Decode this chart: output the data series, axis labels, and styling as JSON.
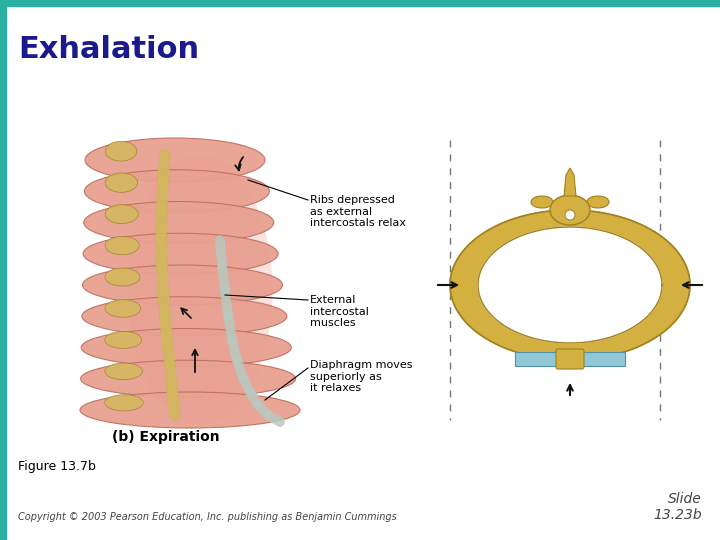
{
  "title": "Exhalation",
  "title_color": "#1a1a8c",
  "title_fontsize": 22,
  "title_bold": true,
  "top_bar_color": "#2ab0a0",
  "left_bar_color": "#2ab0a0",
  "figure_caption": "Figure 13.7b",
  "caption_fontsize": 9,
  "caption_color": "#000000",
  "copyright_text": "Copyright © 2003 Pearson Education, Inc. publishing as Benjamin Cummings",
  "copyright_fontsize": 7,
  "copyright_color": "#444444",
  "slide_text": "Slide\n13.23b",
  "slide_fontsize": 10,
  "slide_color": "#444444",
  "bg_color": "#ffffff",
  "label1": "Ribs depressed\nas external\nintercostals relax",
  "label2": "External\nintercostal\nmuscles",
  "label3": "Diaphragm moves\nsuperiorly as\nit relaxes",
  "subheading": "(b) Expiration",
  "subheading_fontsize": 10,
  "rib_color": "#e8a090",
  "rib_edge": "#c07060",
  "bone_color": "#d4b860",
  "bone_edge": "#a08030",
  "muscle_color": "#d4896a",
  "cartilage_color": "#b8c8c0",
  "sternum_color": "#90c8d8",
  "sternum_edge": "#5090a8",
  "ring_color": "#d4b040",
  "ring_edge": "#a08020",
  "arrow_color": "#111111",
  "dashed_color": "#777777",
  "label_fontsize": 8,
  "subheading_bold": true
}
